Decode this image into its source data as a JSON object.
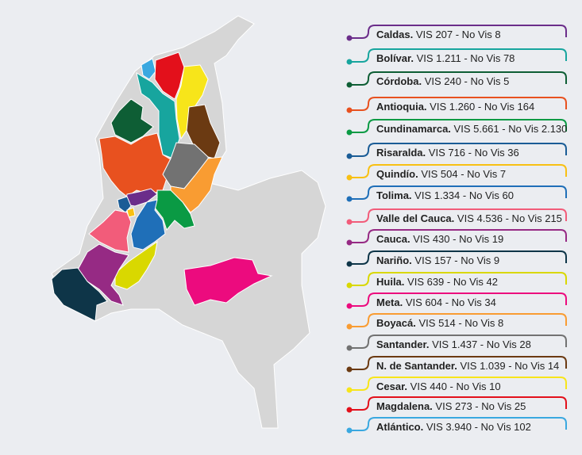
{
  "legend": [
    {
      "name": "Caldas.",
      "text": "VIS 207 - No Vis  8",
      "color": "#6b2d8a"
    },
    {
      "name": "Bolívar.",
      "text": "VIS 1.211 - No Vis   78",
      "color": "#17a59e"
    },
    {
      "name": "Córdoba.",
      "text": "VIS 240 - No Vis   5",
      "color": "#0e5e35"
    },
    {
      "name": "Antioquia.",
      "text": "VIS 1.260 - No Vis 164",
      "color": "#e8511f"
    },
    {
      "name": "Cundinamarca.",
      "text": "VIS 5.661 - No Vis   2.130",
      "color": "#0a9a44"
    },
    {
      "name": "Risaralda.",
      "text": "VIS 716 - No Vis   36",
      "color": "#1a5c96"
    },
    {
      "name": "Quindío.",
      "text": "VIS 504 - No Vis 7",
      "color": "#f8c013"
    },
    {
      "name": "Tolima.",
      "text": "VIS 1.334 - No Vis 60",
      "color": "#1f6fb8"
    },
    {
      "name": "Valle del Cauca.",
      "text": "VIS 4.536 - No Vis 215",
      "color": "#f25c7a"
    },
    {
      "name": "Cauca.",
      "text": "VIS 430  - No Vis 19",
      "color": "#962a84"
    },
    {
      "name": "Nariño.",
      "text": "VIS 157 - No Vis 9",
      "color": "#0e3548"
    },
    {
      "name": "Huila.",
      "text": "VIS 639 - No Vis 42",
      "color": "#d9d800"
    },
    {
      "name": "Meta.",
      "text": "VIS 604 - No Vis 34",
      "color": "#ec0b7e"
    },
    {
      "name": "Boyacá.",
      "text": "VIS 514 - No Vis 8",
      "color": "#f99c32"
    },
    {
      "name": "Santander.",
      "text": "VIS 1.437 - No Vis 28",
      "color": "#727272"
    },
    {
      "name": "N. de Santander.",
      "text": " VIS 1.039 - No Vis 14",
      "color": "#6b3a12"
    },
    {
      "name": "Cesar.",
      "text": "VIS 440 - No Vis 10",
      "color": "#f7e51a"
    },
    {
      "name": "Magdalena.",
      "text": "VIS 273 - No Vis   25",
      "color": "#e3101b"
    },
    {
      "name": "Atlántico.",
      "text": "VIS 3.940 - No Vis   102",
      "color": "#3aa8e0"
    }
  ]
}
